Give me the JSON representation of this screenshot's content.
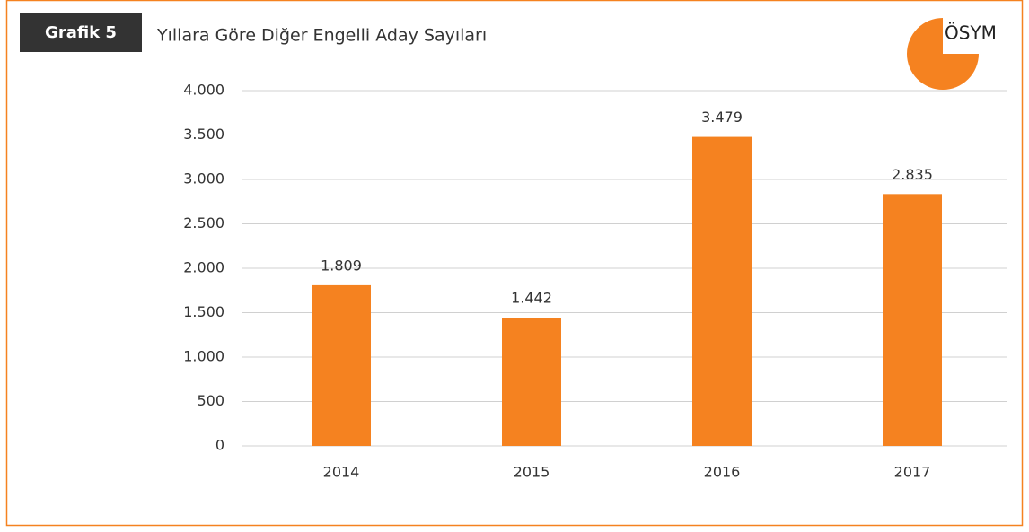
{
  "header": {
    "badge": "Grafik 5",
    "logo": "ÖSYM"
  },
  "chart_data": {
    "type": "bar",
    "title": "Yıllara Göre Diğer Engelli Aday Sayıları",
    "categories": [
      "2014",
      "2015",
      "2016",
      "2017"
    ],
    "values": [
      1809,
      1442,
      3479,
      2835
    ],
    "value_labels": [
      "1.809",
      "1.442",
      "3.479",
      "2.835"
    ],
    "color": "#f58220",
    "ylim": [
      0,
      4000
    ],
    "yticks": [
      0,
      500,
      {
        "value": 1000,
        "label": "1.000"
      },
      {
        "value": 1500,
        "label": "1.500"
      },
      {
        "value": 2000,
        "label": "2.000"
      },
      {
        "value": 2500,
        "label": "2.500"
      },
      {
        "value": 3000,
        "label": "3.000"
      },
      {
        "value": 3500,
        "label": "3.500"
      },
      {
        "value": 4000,
        "label": "4.000"
      }
    ],
    "grid": true
  }
}
